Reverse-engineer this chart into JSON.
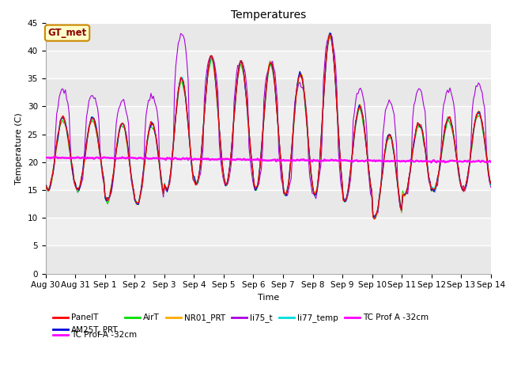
{
  "title": "Temperatures",
  "xlabel": "Time",
  "ylabel": "Temperature (C)",
  "annotation": "GT_met",
  "ylim": [
    0,
    45
  ],
  "yticks": [
    0,
    5,
    10,
    15,
    20,
    25,
    30,
    35,
    40,
    45
  ],
  "series_colors": {
    "PanelT": "#ff0000",
    "AM25T_PRT": "#0000dd",
    "AirT": "#00dd00",
    "NR01_PRT": "#ffaa00",
    "li75_t": "#aa00dd",
    "li77_temp": "#00dddd",
    "TC_Prof_A": "#ff00ff"
  },
  "background_color": "#ffffff",
  "plot_bg_color": "#e8e8e8",
  "grid_band_color": "#d8d8d8",
  "tc_prof_mean": 20.8,
  "xtick_labels": [
    "Aug 30",
    "Aug 31",
    "Sep 1",
    "Sep 2",
    "Sep 3",
    "Sep 4",
    "Sep 5",
    "Sep 6",
    "Sep 7",
    "Sep 8",
    "Sep 9",
    "Sep 10",
    "Sep 11",
    "Sep 12",
    "Sep 13",
    "Sep 14"
  ],
  "legend_entries": [
    "PanelT",
    "AM25T_PRT",
    "AirT",
    "NR01_PRT",
    "li75_t",
    "li77_temp",
    "TC Prof A -32cm"
  ],
  "legend_colors": [
    "#ff0000",
    "#0000dd",
    "#00dd00",
    "#ffaa00",
    "#aa00dd",
    "#00dddd",
    "#ff00ff"
  ]
}
